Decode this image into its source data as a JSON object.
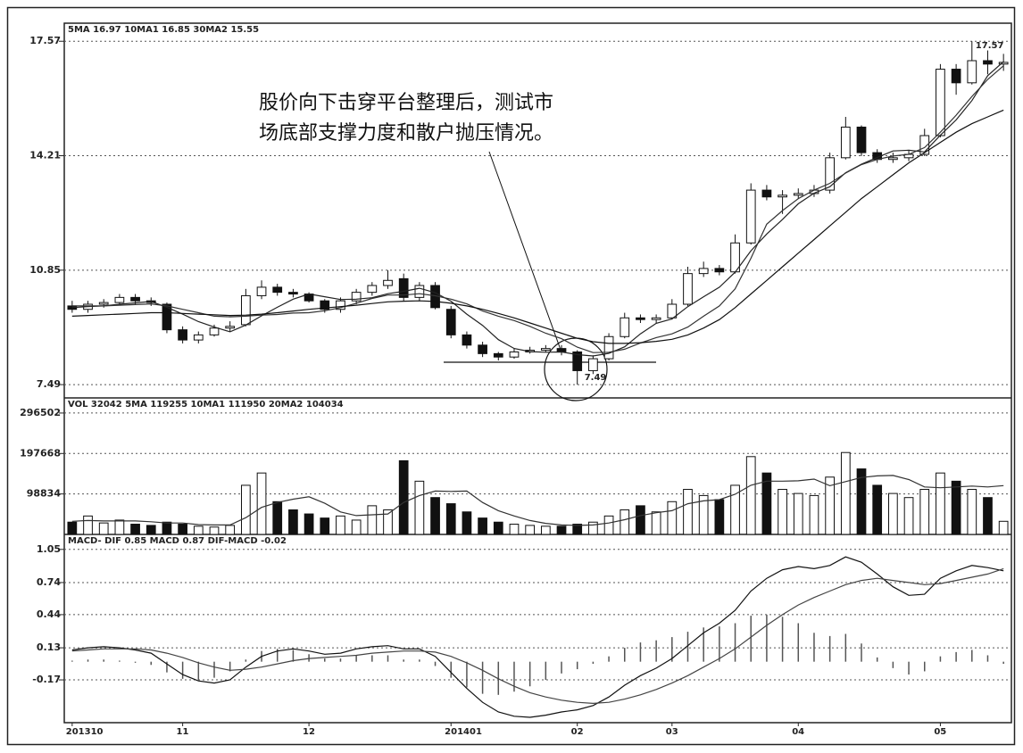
{
  "chart_data": [
    {
      "type": "candlestick",
      "header": "5MA 16.97  10MA1 16.85  30MA2 15.55",
      "annotation": [
        "股价向下击穿平台整理后，测试市",
        "场底部支撑力度和散户抛压情况。"
      ],
      "ylim": [
        7.1,
        18.1
      ],
      "yticks": [
        7.49,
        10.85,
        14.21,
        17.57
      ],
      "grid": true,
      "open": [
        9.8,
        9.7,
        9.85,
        9.9,
        10.05,
        9.95,
        9.85,
        9.1,
        8.8,
        8.95,
        9.15,
        9.25,
        10.1,
        10.35,
        10.2,
        10.15,
        9.95,
        9.7,
        9.95,
        10.2,
        10.4,
        10.6,
        10.05,
        10.4,
        9.7,
        8.95,
        8.65,
        8.4,
        8.3,
        8.45,
        8.5,
        8.55,
        8.45,
        7.9,
        8.25,
        8.9,
        9.45,
        9.4,
        9.45,
        9.85,
        10.75,
        10.9,
        10.8,
        11.65,
        13.2,
        13.0,
        13.05,
        13.1,
        13.2,
        14.15,
        15.05,
        14.3,
        14.1,
        14.15,
        14.25,
        14.8,
        16.75,
        16.35,
        17.0,
        16.9
      ],
      "high": [
        9.95,
        9.95,
        10.0,
        10.15,
        10.15,
        10.05,
        9.9,
        9.2,
        9.05,
        9.25,
        9.35,
        10.3,
        10.55,
        10.45,
        10.3,
        10.2,
        10.0,
        10.05,
        10.3,
        10.5,
        10.85,
        10.75,
        10.5,
        10.5,
        9.8,
        9.05,
        8.75,
        8.45,
        8.55,
        8.6,
        8.65,
        8.65,
        8.5,
        8.35,
        9.0,
        9.6,
        9.55,
        9.55,
        10.0,
        10.95,
        11.1,
        11.0,
        11.9,
        13.4,
        13.35,
        13.2,
        13.25,
        13.35,
        14.3,
        15.35,
        15.1,
        14.4,
        14.3,
        14.35,
        15.0,
        16.9,
        16.9,
        17.57,
        17.3,
        17.2
      ],
      "low": [
        9.6,
        9.6,
        9.75,
        9.85,
        9.85,
        9.8,
        9.0,
        8.7,
        8.7,
        8.9,
        9.05,
        9.2,
        10.0,
        10.1,
        10.05,
        9.9,
        9.6,
        9.6,
        9.85,
        10.1,
        10.3,
        9.95,
        9.95,
        9.7,
        8.85,
        8.55,
        8.3,
        8.2,
        8.25,
        8.4,
        8.45,
        8.35,
        7.49,
        7.8,
        8.2,
        8.85,
        9.3,
        9.3,
        9.4,
        9.8,
        10.65,
        10.7,
        10.75,
        11.6,
        12.9,
        12.5,
        12.95,
        13.0,
        13.1,
        14.1,
        14.2,
        14.0,
        14.0,
        14.05,
        14.2,
        14.75,
        16.0,
        16.3,
        16.6,
        16.7
      ],
      "close": [
        9.7,
        9.85,
        9.9,
        10.05,
        9.95,
        9.9,
        9.1,
        8.8,
        8.95,
        9.15,
        9.2,
        10.1,
        10.35,
        10.2,
        10.15,
        9.95,
        9.7,
        9.95,
        10.2,
        10.4,
        10.55,
        10.05,
        10.4,
        9.75,
        8.95,
        8.65,
        8.4,
        8.3,
        8.45,
        8.5,
        8.55,
        8.45,
        7.9,
        8.25,
        8.9,
        9.45,
        9.4,
        9.45,
        9.85,
        10.75,
        10.9,
        10.8,
        11.65,
        13.2,
        13.0,
        13.05,
        13.1,
        13.2,
        14.15,
        15.05,
        14.3,
        14.1,
        14.15,
        14.25,
        14.8,
        16.75,
        16.35,
        17.0,
        16.9,
        16.95
      ],
      "series": [
        {
          "color": "#222222",
          "values": [
            9.75,
            9.78,
            9.8,
            9.85,
            9.89,
            9.93,
            9.76,
            9.56,
            9.34,
            9.18,
            9.04,
            9.24,
            9.51,
            9.76,
            10.0,
            10.15,
            10.07,
            9.99,
            10.0,
            10.04,
            10.16,
            10.23,
            10.32,
            10.19,
            9.94,
            9.56,
            9.23,
            8.81,
            8.55,
            8.46,
            8.44,
            8.45,
            8.37,
            8.33,
            8.41,
            8.6,
            8.98,
            9.29,
            9.42,
            9.78,
            10.07,
            10.35,
            10.79,
            11.42,
            11.91,
            12.34,
            12.8,
            13.11,
            13.3,
            13.71,
            13.96,
            14.16,
            14.35,
            14.37,
            14.32,
            14.81,
            15.26,
            15.83,
            16.56,
            16.97
          ]
        },
        {
          "color": "#333333",
          "values": [
            9.8,
            9.8,
            9.8,
            9.82,
            9.84,
            9.86,
            9.8,
            9.7,
            9.6,
            9.5,
            9.48,
            9.5,
            9.53,
            9.55,
            9.59,
            9.6,
            9.66,
            9.75,
            9.88,
            10.02,
            10.12,
            10.12,
            10.16,
            10.1,
            10.0,
            9.86,
            9.65,
            9.5,
            9.37,
            9.2,
            9.0,
            8.84,
            8.59,
            8.43,
            8.44,
            8.53,
            8.71,
            8.87,
            8.98,
            9.18,
            9.5,
            9.8,
            10.3,
            11.2,
            12.2,
            12.6,
            12.95,
            13.2,
            13.4,
            13.7,
            13.95,
            14.1,
            14.2,
            14.25,
            14.45,
            14.9,
            15.4,
            15.95,
            16.45,
            16.85
          ]
        },
        {
          "color": "#111111",
          "values": [
            9.5,
            9.52,
            9.54,
            9.56,
            9.58,
            9.6,
            9.6,
            9.58,
            9.56,
            9.54,
            9.52,
            9.53,
            9.56,
            9.6,
            9.65,
            9.7,
            9.74,
            9.78,
            9.82,
            9.87,
            9.92,
            9.94,
            9.95,
            9.93,
            9.88,
            9.8,
            9.7,
            9.58,
            9.45,
            9.3,
            9.15,
            9.0,
            8.85,
            8.75,
            8.7,
            8.7,
            8.72,
            8.76,
            8.82,
            8.95,
            9.15,
            9.4,
            9.75,
            10.15,
            10.55,
            10.95,
            11.35,
            11.75,
            12.15,
            12.55,
            12.95,
            13.3,
            13.65,
            14.0,
            14.3,
            14.6,
            14.9,
            15.15,
            15.35,
            15.55
          ]
        }
      ]
    },
    {
      "type": "bar",
      "header": "VOL 32042  5MA 119255  10MA1 111950  20MA2 104034",
      "ylim": [
        0,
        333400
      ],
      "yticks": [
        98834,
        197668,
        296502
      ],
      "grid": true,
      "values": [
        30000,
        45000,
        28000,
        35000,
        25000,
        22000,
        30000,
        25000,
        20000,
        18000,
        22000,
        120000,
        150000,
        80000,
        60000,
        50000,
        40000,
        45000,
        35000,
        70000,
        60000,
        180000,
        130000,
        90000,
        75000,
        55000,
        40000,
        30000,
        25000,
        22000,
        20000,
        20000,
        25000,
        30000,
        45000,
        60000,
        70000,
        55000,
        80000,
        110000,
        95000,
        85000,
        120000,
        190000,
        150000,
        110000,
        100000,
        95000,
        140000,
        200000,
        160000,
        120000,
        100000,
        90000,
        110000,
        150000,
        130000,
        110000,
        90000,
        32042
      ],
      "series": [
        {
          "color": "#333333",
          "values": [
            32000,
            34000,
            33000,
            33000,
            33000,
            31000,
            28000,
            28000,
            24000,
            23000,
            23000,
            41000,
            66000,
            78000,
            86000,
            92000,
            76000,
            55000,
            46000,
            48000,
            50000,
            78000,
            95000,
            106000,
            105000,
            106000,
            78000,
            58000,
            45000,
            34000,
            27000,
            23000,
            22000,
            23000,
            28000,
            36000,
            46000,
            53000,
            58000,
            75000,
            82000,
            85000,
            98000,
            120000,
            130000,
            130000,
            131000,
            135000,
            119000,
            129000,
            139000,
            143000,
            144000,
            134000,
            116000,
            114000,
            116000,
            118000,
            116000,
            119255
          ]
        }
      ]
    },
    {
      "type": "line",
      "header": "MACD- DIF 0.85  MACD 0.87  DIF-MACD -0.02",
      "ylim": [
        -0.57,
        1.19
      ],
      "yticks": [
        -0.17,
        0.13,
        0.44,
        0.74,
        1.05
      ],
      "grid": true,
      "categories": [
        "201310",
        null,
        null,
        null,
        null,
        null,
        null,
        "11",
        null,
        null,
        null,
        null,
        null,
        null,
        null,
        "12",
        null,
        null,
        null,
        null,
        null,
        null,
        null,
        null,
        "201401",
        null,
        null,
        null,
        null,
        null,
        null,
        null,
        "02",
        null,
        null,
        null,
        null,
        null,
        "03",
        null,
        null,
        null,
        null,
        null,
        null,
        null,
        "04",
        null,
        null,
        null,
        null,
        null,
        null,
        null,
        null,
        "05",
        null,
        null,
        null,
        null
      ],
      "bars": [
        0.01,
        0.02,
        0.02,
        0.01,
        -0.01,
        -0.03,
        -0.1,
        -0.16,
        -0.17,
        -0.15,
        -0.09,
        0.02,
        0.1,
        0.12,
        0.11,
        0.07,
        0.03,
        0.03,
        0.06,
        0.06,
        0.06,
        0.02,
        0.02,
        -0.04,
        -0.15,
        -0.24,
        -0.3,
        -0.31,
        -0.28,
        -0.23,
        -0.17,
        -0.11,
        -0.07,
        -0.02,
        0.05,
        0.13,
        0.18,
        0.2,
        0.23,
        0.28,
        0.32,
        0.33,
        0.36,
        0.43,
        0.44,
        0.42,
        0.36,
        0.27,
        0.24,
        0.26,
        0.17,
        0.04,
        -0.06,
        -0.12,
        -0.09,
        0.05,
        0.09,
        0.11,
        0.06,
        -0.02
      ],
      "series": [
        {
          "color": "#111111",
          "values": [
            0.11,
            0.13,
            0.14,
            0.13,
            0.11,
            0.08,
            -0.02,
            -0.12,
            -0.18,
            -0.2,
            -0.17,
            -0.05,
            0.05,
            0.1,
            0.12,
            0.1,
            0.07,
            0.08,
            0.12,
            0.14,
            0.15,
            0.12,
            0.12,
            0.05,
            -0.1,
            -0.25,
            -0.38,
            -0.47,
            -0.51,
            -0.52,
            -0.5,
            -0.47,
            -0.45,
            -0.41,
            -0.33,
            -0.22,
            -0.13,
            -0.06,
            0.03,
            0.15,
            0.27,
            0.36,
            0.48,
            0.66,
            0.78,
            0.86,
            0.89,
            0.87,
            0.9,
            0.98,
            0.93,
            0.82,
            0.7,
            0.62,
            0.63,
            0.78,
            0.85,
            0.9,
            0.88,
            0.85
          ]
        },
        {
          "color": "#444444",
          "values": [
            0.1,
            0.11,
            0.12,
            0.12,
            0.12,
            0.11,
            0.08,
            0.04,
            -0.01,
            -0.05,
            -0.08,
            -0.07,
            -0.05,
            -0.02,
            0.01,
            0.03,
            0.04,
            0.05,
            0.06,
            0.08,
            0.09,
            0.1,
            0.1,
            0.09,
            0.05,
            -0.01,
            -0.08,
            -0.16,
            -0.23,
            -0.29,
            -0.33,
            -0.36,
            -0.38,
            -0.39,
            -0.38,
            -0.35,
            -0.31,
            -0.26,
            -0.2,
            -0.13,
            -0.05,
            0.03,
            0.12,
            0.23,
            0.34,
            0.44,
            0.53,
            0.6,
            0.66,
            0.72,
            0.76,
            0.78,
            0.76,
            0.74,
            0.72,
            0.73,
            0.76,
            0.79,
            0.82,
            0.87
          ]
        }
      ]
    }
  ]
}
